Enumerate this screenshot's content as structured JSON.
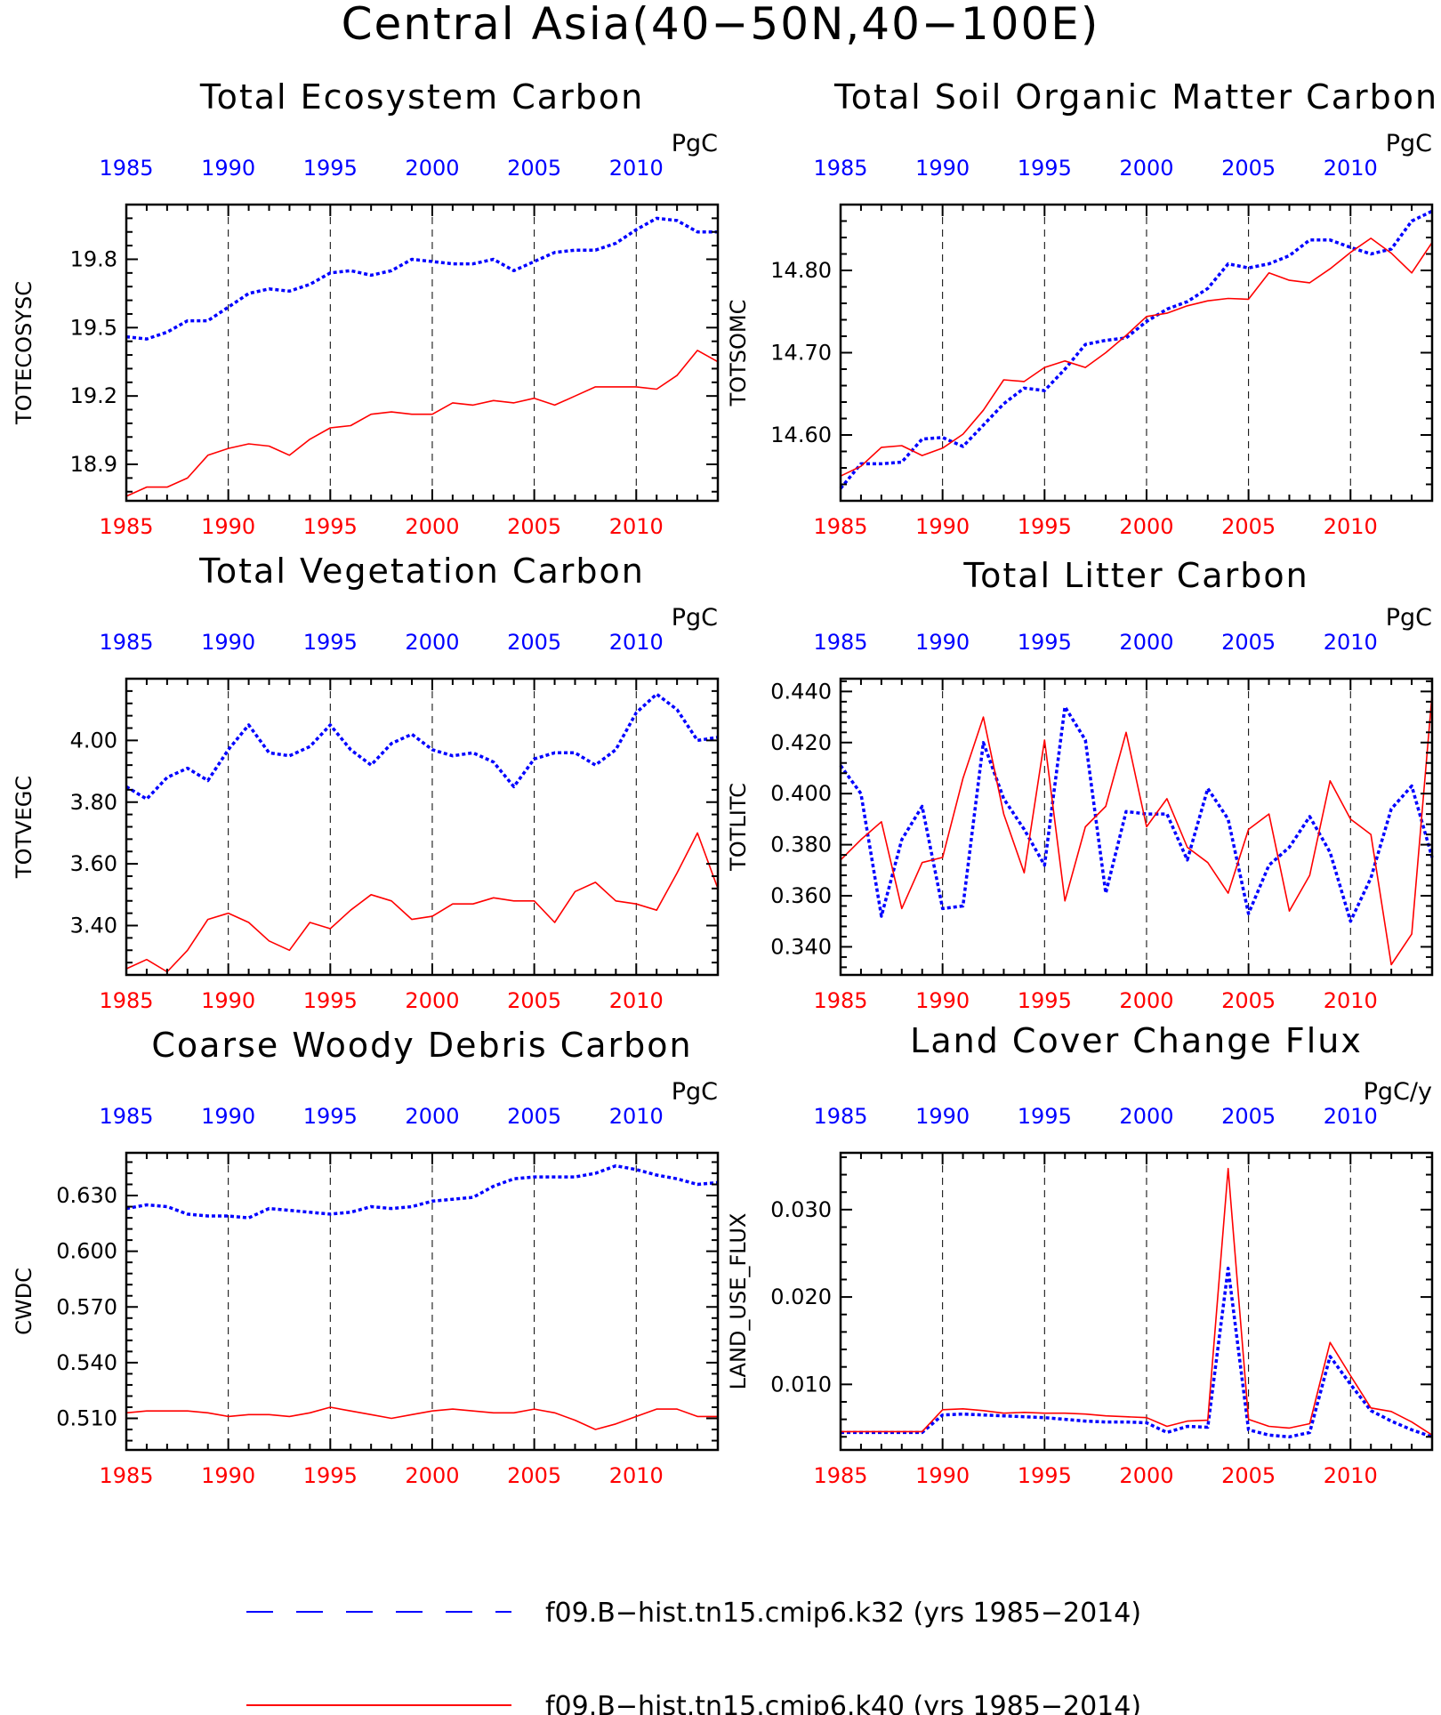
{
  "figure_title": "Central Asia(40−50N,40−100E)",
  "colors": {
    "k32": "#0000ff",
    "k40": "#ff0000",
    "axis": "#000000"
  },
  "legend": {
    "entries": [
      {
        "label": "f09.B−hist.tn15.cmip6.k32 (yrs 1985−2014)",
        "color": "#0000ff",
        "style": "dashed"
      },
      {
        "label": "f09.B−hist.tn15.cmip6.k40 (yrs 1985−2014)",
        "color": "#ff0000",
        "style": "solid"
      }
    ]
  },
  "chart_data": [
    {
      "type": "line",
      "title": "Total Ecosystem Carbon",
      "ylabel": "TOTECOSYSC",
      "units": "PgC",
      "xlim": [
        1985,
        2014
      ],
      "ylim": [
        18.74,
        20.04
      ],
      "yticks": [
        18.9,
        19.2,
        19.5,
        19.8
      ],
      "ytick_labels": [
        "18.9",
        "19.2",
        "19.5",
        "19.8"
      ],
      "xticks": [
        1985,
        1990,
        1995,
        2000,
        2005,
        2010
      ],
      "xtick_labels": [
        "1985",
        "1990",
        "1995",
        "2000",
        "2005",
        "2010"
      ],
      "x": [
        1985,
        1986,
        1987,
        1988,
        1989,
        1990,
        1991,
        1992,
        1993,
        1994,
        1995,
        1996,
        1997,
        1998,
        1999,
        2000,
        2001,
        2002,
        2003,
        2004,
        2005,
        2006,
        2007,
        2008,
        2009,
        2010,
        2011,
        2012,
        2013,
        2014
      ],
      "series": [
        {
          "name": "f09.B−hist.tn15.cmip6.k32",
          "color": "#0000ff",
          "style": "dashed",
          "values": [
            19.46,
            19.45,
            19.48,
            19.53,
            19.53,
            19.59,
            19.65,
            19.67,
            19.66,
            19.69,
            19.74,
            19.75,
            19.73,
            19.75,
            19.8,
            19.79,
            19.78,
            19.78,
            19.8,
            19.75,
            19.79,
            19.83,
            19.84,
            19.84,
            19.87,
            19.93,
            19.98,
            19.97,
            19.92,
            19.92
          ]
        },
        {
          "name": "f09.B−hist.tn15.cmip6.k40",
          "color": "#ff0000",
          "style": "solid",
          "values": [
            18.76,
            18.8,
            18.8,
            18.84,
            18.94,
            18.97,
            18.99,
            18.98,
            18.94,
            19.01,
            19.06,
            19.07,
            19.12,
            19.13,
            19.12,
            19.12,
            19.17,
            19.16,
            19.18,
            19.17,
            19.19,
            19.16,
            19.2,
            19.24,
            19.24,
            19.24,
            19.23,
            19.29,
            19.4,
            19.35
          ]
        }
      ]
    },
    {
      "type": "line",
      "title": "Total Soil Organic Matter Carbon",
      "ylabel": "TOTSOMC",
      "units": "PgC",
      "xlim": [
        1985,
        2014
      ],
      "ylim": [
        14.52,
        14.88
      ],
      "yticks": [
        14.6,
        14.7,
        14.8
      ],
      "ytick_labels": [
        "14.60",
        "14.70",
        "14.80"
      ],
      "xticks": [
        1985,
        1990,
        1995,
        2000,
        2005,
        2010
      ],
      "xtick_labels": [
        "1985",
        "1990",
        "1995",
        "2000",
        "2005",
        "2010"
      ],
      "x": [
        1985,
        1986,
        1987,
        1988,
        1989,
        1990,
        1991,
        1992,
        1993,
        1994,
        1995,
        1996,
        1997,
        1998,
        1999,
        2000,
        2001,
        2002,
        2003,
        2004,
        2005,
        2006,
        2007,
        2008,
        2009,
        2010,
        2011,
        2012,
        2013,
        2014
      ],
      "series": [
        {
          "name": "f09.B−hist.tn15.cmip6.k32",
          "color": "#0000ff",
          "style": "dashed",
          "values": [
            14.535,
            14.565,
            14.565,
            14.567,
            14.595,
            14.597,
            14.586,
            14.612,
            14.638,
            14.657,
            14.654,
            14.68,
            14.71,
            14.715,
            14.718,
            14.738,
            14.753,
            14.762,
            14.778,
            14.808,
            14.803,
            14.808,
            14.818,
            14.837,
            14.837,
            14.828,
            14.82,
            14.826,
            14.86,
            14.872
          ]
        },
        {
          "name": "f09.B−hist.tn15.cmip6.k40",
          "color": "#ff0000",
          "style": "solid",
          "values": [
            14.55,
            14.562,
            14.585,
            14.587,
            14.575,
            14.584,
            14.601,
            14.63,
            14.667,
            14.665,
            14.682,
            14.69,
            14.682,
            14.7,
            14.721,
            14.744,
            14.748,
            14.757,
            14.763,
            14.766,
            14.765,
            14.797,
            14.788,
            14.785,
            14.802,
            14.822,
            14.839,
            14.821,
            14.797,
            14.834
          ]
        }
      ]
    },
    {
      "type": "line",
      "title": "Total Vegetation Carbon",
      "ylabel": "TOTVEGC",
      "units": "PgC",
      "xlim": [
        1985,
        2014
      ],
      "ylim": [
        3.24,
        4.2
      ],
      "yticks": [
        3.4,
        3.6,
        3.8,
        4.0
      ],
      "ytick_labels": [
        "3.40",
        "3.60",
        "3.80",
        "4.00"
      ],
      "xticks": [
        1985,
        1990,
        1995,
        2000,
        2005,
        2010
      ],
      "xtick_labels": [
        "1985",
        "1990",
        "1995",
        "2000",
        "2005",
        "2010"
      ],
      "x": [
        1985,
        1986,
        1987,
        1988,
        1989,
        1990,
        1991,
        1992,
        1993,
        1994,
        1995,
        1996,
        1997,
        1998,
        1999,
        2000,
        2001,
        2002,
        2003,
        2004,
        2005,
        2006,
        2007,
        2008,
        2009,
        2010,
        2011,
        2012,
        2013,
        2014
      ],
      "series": [
        {
          "name": "f09.B−hist.tn15.cmip6.k32",
          "color": "#0000ff",
          "style": "dashed",
          "values": [
            3.85,
            3.81,
            3.88,
            3.91,
            3.87,
            3.97,
            4.05,
            3.96,
            3.95,
            3.98,
            4.05,
            3.97,
            3.92,
            3.99,
            4.02,
            3.97,
            3.95,
            3.96,
            3.93,
            3.85,
            3.94,
            3.96,
            3.96,
            3.92,
            3.97,
            4.09,
            4.15,
            4.1,
            4.0,
            4.01
          ]
        },
        {
          "name": "f09.B−hist.tn15.cmip6.k40",
          "color": "#ff0000",
          "style": "solid",
          "values": [
            3.26,
            3.29,
            3.25,
            3.32,
            3.42,
            3.44,
            3.41,
            3.35,
            3.32,
            3.41,
            3.39,
            3.45,
            3.5,
            3.48,
            3.42,
            3.43,
            3.47,
            3.47,
            3.49,
            3.48,
            3.48,
            3.41,
            3.51,
            3.54,
            3.48,
            3.47,
            3.45,
            3.57,
            3.7,
            3.52
          ]
        }
      ]
    },
    {
      "type": "line",
      "title": "Total Litter Carbon",
      "ylabel": "TOTLITC",
      "units": "PgC",
      "xlim": [
        1985,
        2014
      ],
      "ylim": [
        0.329,
        0.445
      ],
      "yticks": [
        0.34,
        0.36,
        0.38,
        0.4,
        0.42,
        0.44
      ],
      "ytick_labels": [
        "0.340",
        "0.360",
        "0.380",
        "0.400",
        "0.420",
        "0.440"
      ],
      "xticks": [
        1985,
        1990,
        1995,
        2000,
        2005,
        2010
      ],
      "xtick_labels": [
        "1985",
        "1990",
        "1995",
        "2000",
        "2005",
        "2010"
      ],
      "x": [
        1985,
        1986,
        1987,
        1988,
        1989,
        1990,
        1991,
        1992,
        1993,
        1994,
        1995,
        1996,
        1997,
        1998,
        1999,
        2000,
        2001,
        2002,
        2003,
        2004,
        2005,
        2006,
        2007,
        2008,
        2009,
        2010,
        2011,
        2012,
        2013,
        2014
      ],
      "series": [
        {
          "name": "f09.B−hist.tn15.cmip6.k32",
          "color": "#0000ff",
          "style": "dashed",
          "values": [
            0.411,
            0.4,
            0.352,
            0.382,
            0.395,
            0.355,
            0.356,
            0.42,
            0.398,
            0.386,
            0.372,
            0.434,
            0.421,
            0.361,
            0.393,
            0.392,
            0.392,
            0.374,
            0.402,
            0.39,
            0.353,
            0.372,
            0.379,
            0.391,
            0.377,
            0.35,
            0.367,
            0.394,
            0.403,
            0.375
          ]
        },
        {
          "name": "f09.B−hist.tn15.cmip6.k40",
          "color": "#ff0000",
          "style": "solid",
          "values": [
            0.374,
            0.382,
            0.389,
            0.355,
            0.373,
            0.375,
            0.406,
            0.43,
            0.392,
            0.369,
            0.421,
            0.358,
            0.387,
            0.395,
            0.424,
            0.387,
            0.398,
            0.379,
            0.373,
            0.361,
            0.386,
            0.392,
            0.354,
            0.368,
            0.405,
            0.39,
            0.384,
            0.333,
            0.345,
            0.439
          ]
        }
      ]
    },
    {
      "type": "line",
      "title": "Coarse Woody Debris Carbon",
      "ylabel": "CWDC",
      "units": "PgC",
      "xlim": [
        1985,
        2014
      ],
      "ylim": [
        0.493,
        0.653
      ],
      "yticks": [
        0.51,
        0.54,
        0.57,
        0.6,
        0.63
      ],
      "ytick_labels": [
        "0.510",
        "0.540",
        "0.570",
        "0.600",
        "0.630"
      ],
      "xticks": [
        1985,
        1990,
        1995,
        2000,
        2005,
        2010
      ],
      "xtick_labels": [
        "1985",
        "1990",
        "1995",
        "2000",
        "2005",
        "2010"
      ],
      "x": [
        1985,
        1986,
        1987,
        1988,
        1989,
        1990,
        1991,
        1992,
        1993,
        1994,
        1995,
        1996,
        1997,
        1998,
        1999,
        2000,
        2001,
        2002,
        2003,
        2004,
        2005,
        2006,
        2007,
        2008,
        2009,
        2010,
        2011,
        2012,
        2013,
        2014
      ],
      "series": [
        {
          "name": "f09.B−hist.tn15.cmip6.k32",
          "color": "#0000ff",
          "style": "dashed",
          "values": [
            0.623,
            0.625,
            0.624,
            0.62,
            0.619,
            0.619,
            0.618,
            0.623,
            0.622,
            0.621,
            0.62,
            0.621,
            0.624,
            0.623,
            0.624,
            0.627,
            0.628,
            0.629,
            0.635,
            0.639,
            0.64,
            0.64,
            0.64,
            0.642,
            0.646,
            0.644,
            0.641,
            0.639,
            0.636,
            0.637
          ]
        },
        {
          "name": "f09.B−hist.tn15.cmip6.k40",
          "color": "#ff0000",
          "style": "solid",
          "values": [
            0.513,
            0.514,
            0.514,
            0.514,
            0.513,
            0.511,
            0.512,
            0.512,
            0.511,
            0.513,
            0.516,
            0.514,
            0.512,
            0.51,
            0.512,
            0.514,
            0.515,
            0.514,
            0.513,
            0.513,
            0.515,
            0.513,
            0.509,
            0.504,
            0.507,
            0.511,
            0.515,
            0.515,
            0.511,
            0.511
          ]
        }
      ]
    },
    {
      "type": "line",
      "title": "Land Cover Change Flux",
      "ylabel": "LAND_USE_FLUX",
      "units": "PgC/y",
      "xlim": [
        1985,
        2014
      ],
      "ylim": [
        0.0025,
        0.0365
      ],
      "yticks": [
        0.01,
        0.02,
        0.03
      ],
      "ytick_labels": [
        "0.010",
        "0.020",
        "0.030"
      ],
      "xticks": [
        1985,
        1990,
        1995,
        2000,
        2005,
        2010
      ],
      "xtick_labels": [
        "1985",
        "1990",
        "1995",
        "2000",
        "2005",
        "2010"
      ],
      "x": [
        1985,
        1986,
        1987,
        1988,
        1989,
        1990,
        1991,
        1992,
        1993,
        1994,
        1995,
        1996,
        1997,
        1998,
        1999,
        2000,
        2001,
        2002,
        2003,
        2004,
        2005,
        2006,
        2007,
        2008,
        2009,
        2010,
        2011,
        2012,
        2013,
        2014
      ],
      "series": [
        {
          "name": "f09.B−hist.tn15.cmip6.k32",
          "color": "#0000ff",
          "style": "dashed",
          "values": [
            0.0045,
            0.0045,
            0.0045,
            0.0045,
            0.0045,
            0.0065,
            0.0066,
            0.0065,
            0.0064,
            0.0063,
            0.0062,
            0.006,
            0.0058,
            0.0057,
            0.0057,
            0.0056,
            0.0045,
            0.0052,
            0.0051,
            0.0233,
            0.0048,
            0.0042,
            0.004,
            0.0045,
            0.0132,
            0.01,
            0.007,
            0.0058,
            0.0048,
            0.004
          ]
        },
        {
          "name": "f09.B−hist.tn15.cmip6.k40",
          "color": "#ff0000",
          "style": "solid",
          "values": [
            0.0046,
            0.0046,
            0.0046,
            0.0046,
            0.0046,
            0.0071,
            0.0072,
            0.007,
            0.0067,
            0.0068,
            0.0067,
            0.0067,
            0.0066,
            0.0064,
            0.0063,
            0.0062,
            0.0052,
            0.0058,
            0.0059,
            0.0347,
            0.006,
            0.0052,
            0.005,
            0.0055,
            0.0148,
            0.011,
            0.0073,
            0.0069,
            0.0057,
            0.0042
          ]
        }
      ]
    }
  ]
}
